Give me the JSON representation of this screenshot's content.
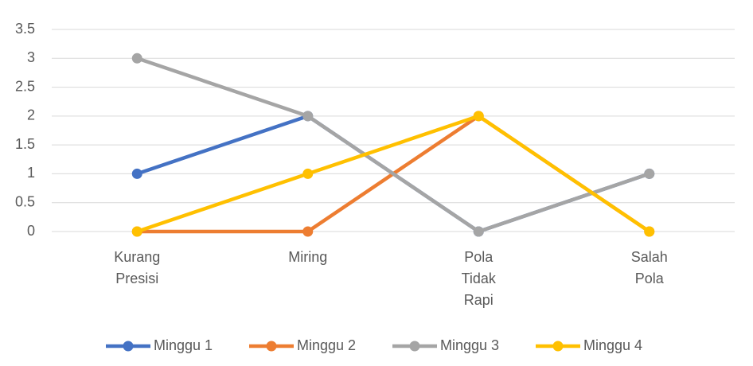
{
  "chart_data": {
    "type": "line",
    "categories": [
      "Kurang Presisi",
      "Miring",
      "Pola Tidak Rapi",
      "Salah Pola"
    ],
    "series": [
      {
        "name": "Minggu 1",
        "color": "#4472c4",
        "values": [
          1,
          2,
          0,
          1
        ]
      },
      {
        "name": "Minggu 2",
        "color": "#ed7d31",
        "values": [
          0,
          0,
          2,
          0
        ]
      },
      {
        "name": "Minggu 3",
        "color": "#a5a5a5",
        "values": [
          3,
          2,
          0,
          1
        ]
      },
      {
        "name": "Minggu 4",
        "color": "#ffc000",
        "values": [
          0,
          1,
          2,
          0
        ]
      }
    ],
    "ylim": [
      0,
      3.5
    ],
    "yticks": [
      0,
      0.5,
      1,
      1.5,
      2,
      2.5,
      3,
      3.5
    ],
    "grid": true,
    "legend": "bottom"
  }
}
